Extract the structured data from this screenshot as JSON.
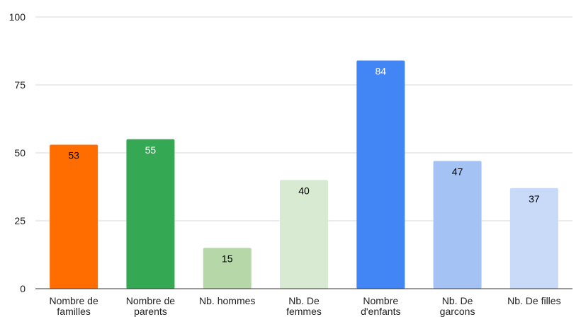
{
  "chart_data": {
    "type": "bar",
    "title": "",
    "xlabel": "",
    "ylabel": "",
    "ylim": [
      0,
      100
    ],
    "y_ticks": [
      0,
      25,
      50,
      75,
      100
    ],
    "grid": true,
    "legend": "none",
    "categories": [
      [
        "Nombre de",
        "familles"
      ],
      [
        "Nombre de",
        "parents"
      ],
      [
        "Nb. hommes"
      ],
      [
        "Nb. De",
        "femmes"
      ],
      [
        "Nombre",
        "d'enfants"
      ],
      [
        "Nb. De",
        "garcons"
      ],
      [
        "Nb. De filles"
      ]
    ],
    "values": [
      53,
      55,
      15,
      40,
      84,
      47,
      37
    ],
    "bar_colors": [
      "#ff6d01",
      "#34a853",
      "#b6d7a8",
      "#d9ead3",
      "#4285f4",
      "#a4c2f4",
      "#c9daf8"
    ],
    "label_colors": [
      "#000000",
      "#ffffff",
      "#000000",
      "#000000",
      "#ffffff",
      "#000000",
      "#000000"
    ]
  }
}
